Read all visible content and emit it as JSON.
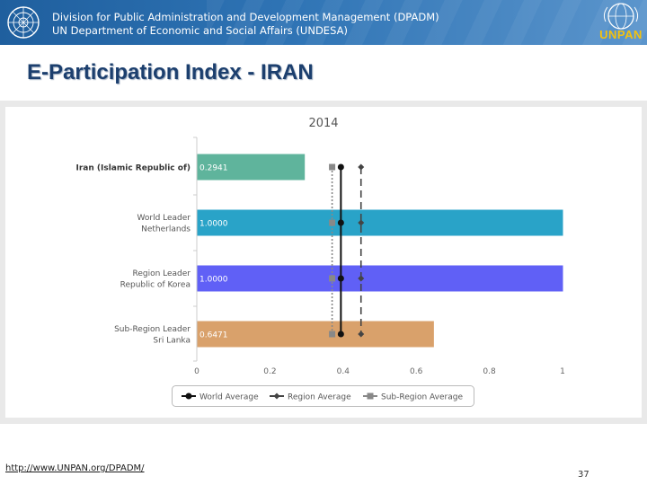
{
  "header": {
    "line1": "Division for Public Administration and Development Management (DPADM)",
    "line2": "UN Department of Economic and Social Affairs (UNDESA)",
    "logo_text": "UNPAN"
  },
  "slide": {
    "title": "E-Participation Index - IRAN"
  },
  "footer": {
    "link": "http://www.UNPAN.org/DPADM/",
    "page": "37"
  },
  "chart_data": {
    "type": "bar",
    "orientation": "horizontal",
    "title": "2014",
    "categories": [
      [
        "Iran (Islamic Republic of)"
      ],
      [
        "World Leader",
        "Netherlands"
      ],
      [
        "Region Leader",
        "Republic of Korea"
      ],
      [
        "Sub-Region Leader",
        "Sri Lanka"
      ]
    ],
    "values": [
      0.2941,
      1.0,
      1.0,
      0.6471
    ],
    "value_labels": [
      "0.2941",
      "1.0000",
      "1.0000",
      "0.6471"
    ],
    "bar_colors": [
      "#5fb49c",
      "#29a3c8",
      "#6060f6",
      "#d9a16b"
    ],
    "xlim": [
      0,
      1
    ],
    "xticks": [
      0,
      0.2,
      0.4,
      0.6,
      0.8,
      1
    ],
    "xtick_labels": [
      "0",
      "0.2",
      "0.4",
      "0.6",
      "0.8",
      "1"
    ],
    "reference_lines": [
      {
        "name": "World Average",
        "value": 0.394,
        "color": "#111111",
        "style": "solid",
        "marker": "circle"
      },
      {
        "name": "Region Average",
        "value": 0.449,
        "color": "#444444",
        "style": "dashed",
        "marker": "diamond"
      },
      {
        "name": "Sub-Region Average",
        "value": 0.37,
        "color": "#888888",
        "style": "dotted",
        "marker": "square"
      }
    ],
    "legend_position": "bottom",
    "grid": false
  }
}
